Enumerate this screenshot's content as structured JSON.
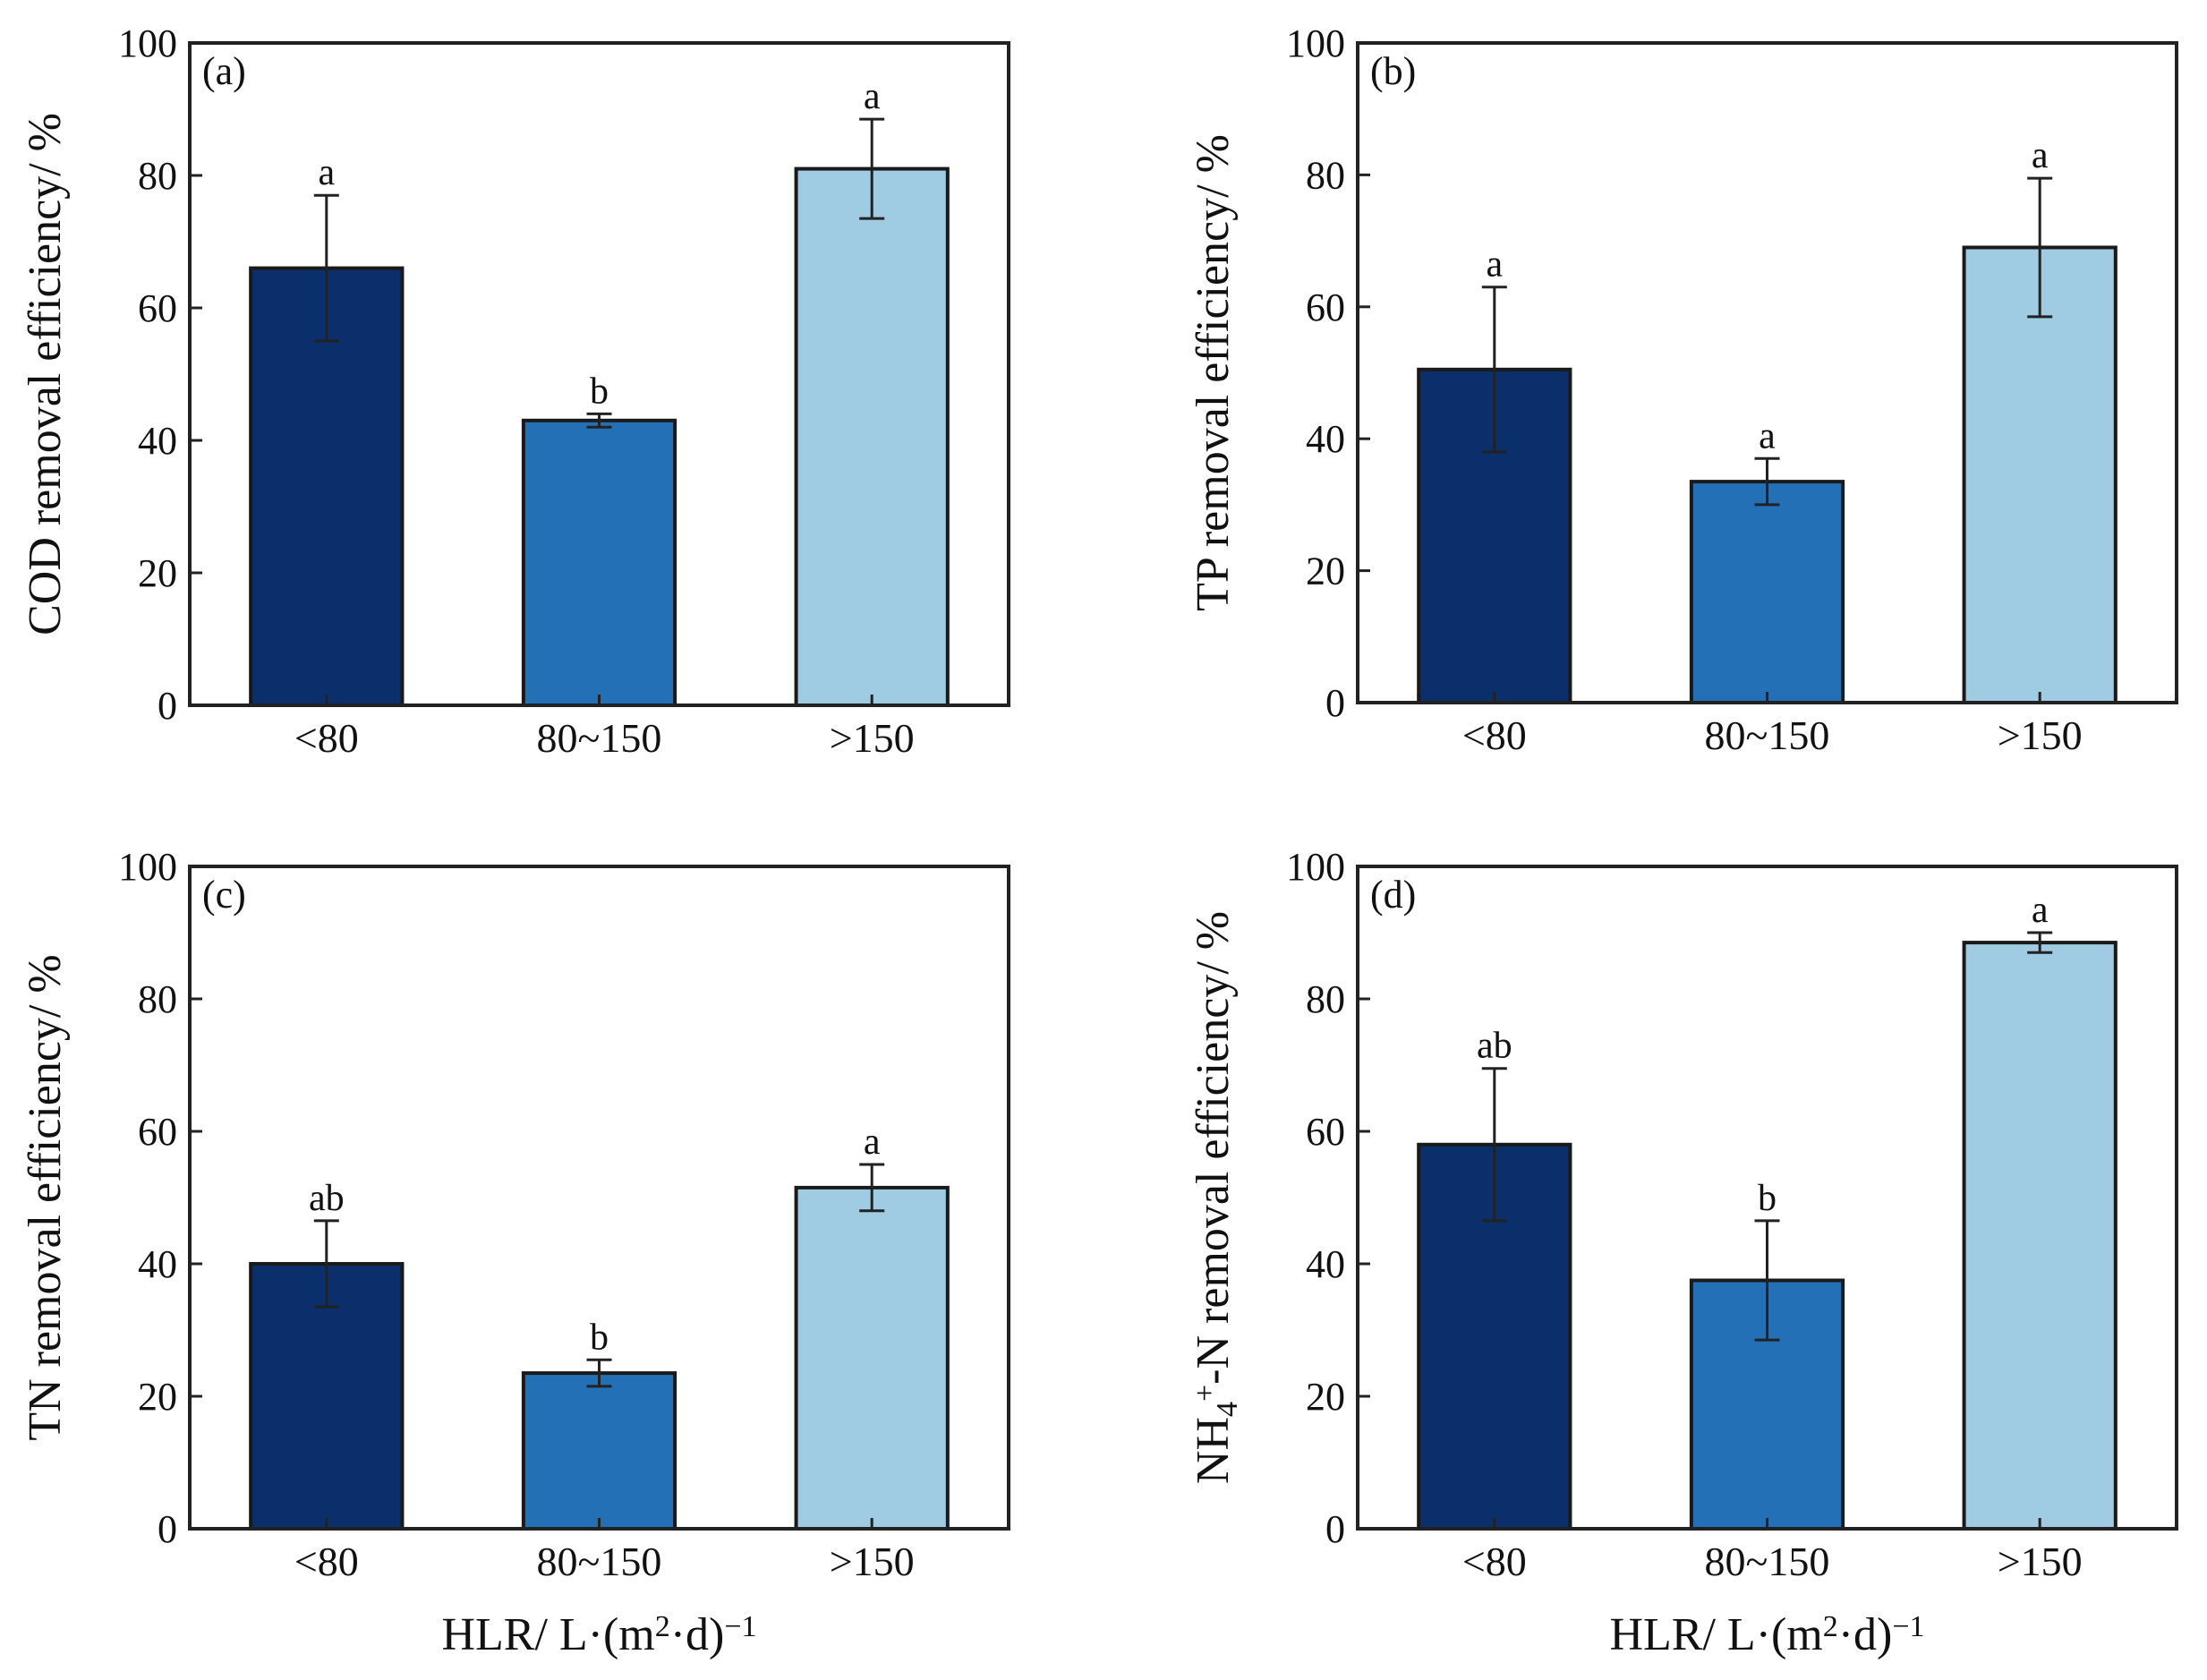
{
  "chart_data": [
    {
      "type": "bar",
      "panel": "(a)",
      "categories": [
        "<80",
        "80~150",
        ">150"
      ],
      "values": [
        66,
        43,
        81
      ],
      "errors": [
        11,
        1,
        7.5
      ],
      "significance": [
        "a",
        "b",
        "a"
      ],
      "ylabel": "COD removal efficiency/ %",
      "xlabel": "",
      "ylim": [
        0,
        100
      ],
      "yticks": [
        "0",
        "20",
        "40",
        "60",
        "80",
        "100"
      ]
    },
    {
      "type": "bar",
      "panel": "(b)",
      "categories": [
        "<80",
        "80~150",
        ">150"
      ],
      "values": [
        50.5,
        33.5,
        69
      ],
      "errors": [
        12.5,
        3.5,
        10.5
      ],
      "significance": [
        "a",
        "a",
        "a"
      ],
      "ylabel": "TP removal efficiency/ %",
      "xlabel": "",
      "ylim": [
        0,
        100
      ],
      "yticks": [
        "0",
        "20",
        "40",
        "60",
        "80",
        "100"
      ]
    },
    {
      "type": "bar",
      "panel": "(c)",
      "categories": [
        "<80",
        "80~150",
        ">150"
      ],
      "values": [
        40,
        23.5,
        51.5
      ],
      "errors": [
        6.5,
        2,
        3.5
      ],
      "significance": [
        "ab",
        "b",
        "a"
      ],
      "ylabel": "TN removal efficiency/ %",
      "xlabel": "HLR/ L·(m²·d)⁻¹",
      "ylim": [
        0,
        100
      ],
      "yticks": [
        "0",
        "20",
        "40",
        "60",
        "80",
        "100"
      ]
    },
    {
      "type": "bar",
      "panel": "(d)",
      "categories": [
        "<80",
        "80~150",
        ">150"
      ],
      "values": [
        58,
        37.5,
        88.5
      ],
      "errors": [
        11.5,
        9,
        1.5
      ],
      "significance": [
        "ab",
        "b",
        "a"
      ],
      "ylabel": "NH₄⁺-N removal efficiency/ %",
      "xlabel": "HLR/ L·(m²·d)⁻¹",
      "ylim": [
        0,
        100
      ],
      "yticks": [
        "0",
        "20",
        "40",
        "60",
        "80",
        "100"
      ]
    }
  ],
  "colors": {
    "bar_colors": [
      "#0b2f6b",
      "#2470b6",
      "#9fcbe3"
    ],
    "axis": "#222222"
  }
}
